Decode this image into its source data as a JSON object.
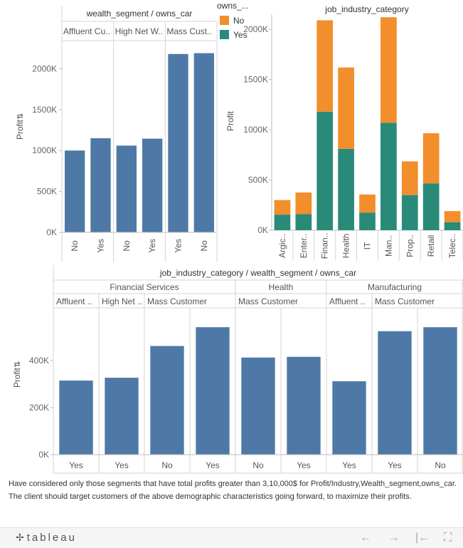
{
  "chart_data": [
    {
      "type": "bar",
      "title": "wealth_segment / owns_car",
      "ylabel": "Profit",
      "ylim": [
        0,
        2300000
      ],
      "yticks": [
        "0K",
        "500K",
        "1000K",
        "1500K",
        "2000K"
      ],
      "grid": false,
      "groups": [
        {
          "label": "Affluent Cu..",
          "categories": [
            "No",
            "Yes"
          ],
          "values": [
            1000000,
            1150000
          ]
        },
        {
          "label": "High Net W..",
          "categories": [
            "No",
            "Yes"
          ],
          "values": [
            1060000,
            1145000
          ]
        },
        {
          "label": "Mass Cust..",
          "categories": [
            "Yes",
            "No"
          ],
          "values": [
            2180000,
            2190000
          ]
        }
      ],
      "color": "#4e79a7"
    },
    {
      "type": "bar",
      "stacked": true,
      "title": "job_industry_category",
      "ylabel": "Profit",
      "ylim": [
        0,
        2150000
      ],
      "yticks": [
        "0K",
        "500K",
        "1000K",
        "1500K",
        "2000K"
      ],
      "categories": [
        "Argic..",
        "Enter..",
        "Finan..",
        "Health",
        "IT",
        "Man..",
        "Prop..",
        "Retail",
        "Telec.."
      ],
      "series": [
        {
          "name": "Yes",
          "color": "#2a8a7a",
          "values": [
            155000,
            160000,
            1180000,
            810000,
            175000,
            1070000,
            350000,
            465000,
            80000
          ]
        },
        {
          "name": "No",
          "color": "#f28e2b",
          "values": [
            145000,
            215000,
            910000,
            810000,
            180000,
            1050000,
            335000,
            500000,
            110000
          ]
        }
      ],
      "legend": {
        "title": "owns_...",
        "position": "top-left"
      }
    },
    {
      "type": "bar",
      "title": "job_industry_category / wealth_segment / owns_car",
      "ylabel": "Profit",
      "ylim": [
        0,
        600000
      ],
      "yticks": [
        "0K",
        "200K",
        "400K"
      ],
      "grid": false,
      "industries": [
        {
          "label": "Financial Services",
          "segments": [
            {
              "label": "Affluent ..",
              "categories": [
                "Yes"
              ],
              "values": [
                315000
              ]
            },
            {
              "label": "High Net ..",
              "categories": [
                "Yes"
              ],
              "values": [
                327000
              ]
            },
            {
              "label": "Mass Customer",
              "categories": [
                "No",
                "Yes"
              ],
              "values": [
                462000,
                542000
              ]
            }
          ]
        },
        {
          "label": "Health",
          "segments": [
            {
              "label": "Mass Customer",
              "categories": [
                "No",
                "Yes"
              ],
              "values": [
                413000,
                416000
              ]
            }
          ]
        },
        {
          "label": "Manufacturing",
          "segments": [
            {
              "label": "Affluent ..",
              "categories": [
                "Yes"
              ],
              "values": [
                312000
              ]
            },
            {
              "label": "Mass Customer",
              "categories": [
                "Yes",
                "No"
              ],
              "values": [
                525000,
                542000
              ]
            }
          ]
        }
      ],
      "color": "#4e79a7"
    }
  ],
  "note": "Have considered only those segments that have total profits greater than 3,10,000$ for Profit/Industry,Wealth_segment,owns_car. The client should target customers of the above demographic characteristics going forward, to maximize their profits.",
  "toolbar": {
    "logo": "tableau",
    "logo_mark": "✢",
    "undo_icon": "←",
    "redo_icon": "→",
    "revert_icon": "|←",
    "fullscreen_icon": "⛶"
  }
}
